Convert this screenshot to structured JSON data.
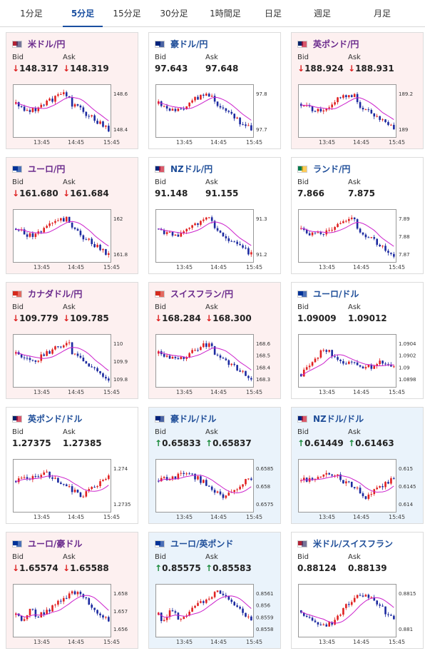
{
  "tabs": [
    {
      "label": "1分足",
      "active": false
    },
    {
      "label": "5分足",
      "active": true
    },
    {
      "label": "15分足",
      "active": false
    },
    {
      "label": "30分足",
      "active": false
    },
    {
      "label": "1時間足",
      "active": false
    },
    {
      "label": "日足",
      "active": false
    },
    {
      "label": "週足",
      "active": false
    },
    {
      "label": "月足",
      "active": false
    }
  ],
  "labels": {
    "bid": "Bid",
    "ask": "Ask"
  },
  "time_labels": [
    "13:45",
    "14:45",
    "15:45"
  ],
  "colors": {
    "down_bg": "#fdf0f0",
    "up_bg": "#eaf3fb",
    "candle_up": "#e02020",
    "candle_down": "#1c2aa0",
    "ma_line": "#cc22cc",
    "ma_line2": "#22aacc"
  },
  "cards": [
    {
      "name": "米ドル/円",
      "flag": "us",
      "trend": "down",
      "bid": "148.317",
      "ask": "148.319",
      "y_ticks": [
        "148.6",
        "148.4"
      ],
      "shape": "drop"
    },
    {
      "name": "豪ドル/円",
      "flag": "au",
      "trend": "flat",
      "bid": "97.643",
      "ask": "97.648",
      "y_ticks": [
        "97.8",
        "97.7"
      ],
      "shape": "drop"
    },
    {
      "name": "英ポンド/円",
      "flag": "gb",
      "trend": "down",
      "bid": "188.924",
      "ask": "188.931",
      "y_ticks": [
        "189.2",
        "189"
      ],
      "shape": "drop"
    },
    {
      "name": "ユーロ/円",
      "flag": "eu",
      "trend": "down",
      "bid": "161.680",
      "ask": "161.684",
      "y_ticks": [
        "162",
        "161.8"
      ],
      "shape": "drop"
    },
    {
      "name": "NZドル/円",
      "flag": "nz",
      "trend": "flat",
      "bid": "91.148",
      "ask": "91.155",
      "y_ticks": [
        "91.3",
        "91.2"
      ],
      "shape": "drop"
    },
    {
      "name": "ランド/円",
      "flag": "za",
      "trend": "flat",
      "bid": "7.866",
      "ask": "7.875",
      "y_ticks": [
        "7.89",
        "7.88",
        "7.87"
      ],
      "shape": "drop"
    },
    {
      "name": "カナダドル/円",
      "flag": "ca",
      "trend": "down",
      "bid": "109.779",
      "ask": "109.785",
      "y_ticks": [
        "110",
        "109.9",
        "109.8"
      ],
      "shape": "drop"
    },
    {
      "name": "スイスフラン/円",
      "flag": "ch",
      "trend": "down",
      "bid": "168.284",
      "ask": "168.300",
      "y_ticks": [
        "168.6",
        "168.5",
        "168.4",
        "168.3"
      ],
      "shape": "drop"
    },
    {
      "name": "ユーロ/ドル",
      "flag": "eu",
      "trend": "flat",
      "bid": "1.09009",
      "ask": "1.09012",
      "y_ticks": [
        "1.0904",
        "1.0902",
        "1.09",
        "1.0898"
      ],
      "shape": "rise"
    },
    {
      "name": "英ポンド/ドル",
      "flag": "gb",
      "trend": "flat",
      "bid": "1.27375",
      "ask": "1.27385",
      "y_ticks": [
        "1.274",
        "1.2735"
      ],
      "shape": "vee"
    },
    {
      "name": "豪ドル/ドル",
      "flag": "au",
      "trend": "up",
      "bid": "0.65833",
      "ask": "0.65837",
      "y_ticks": [
        "0.6585",
        "0.658",
        "0.6575"
      ],
      "shape": "vee"
    },
    {
      "name": "NZドル/ドル",
      "flag": "nz",
      "trend": "up",
      "bid": "0.61449",
      "ask": "0.61463",
      "y_ticks": [
        "0.615",
        "0.6145",
        "0.614"
      ],
      "shape": "vee"
    },
    {
      "name": "ユーロ/豪ドル",
      "flag": "eu",
      "trend": "down",
      "bid": "1.65574",
      "ask": "1.65588",
      "y_ticks": [
        "1.658",
        "1.657",
        "1.656"
      ],
      "shape": "hump"
    },
    {
      "name": "ユーロ/英ポンド",
      "flag": "eu",
      "trend": "up",
      "bid": "0.85575",
      "ask": "0.85583",
      "y_ticks": [
        "0.8561",
        "0.856",
        "0.8559",
        "0.8558"
      ],
      "shape": "hump"
    },
    {
      "name": "米ドル/スイスフラン",
      "flag": "us",
      "trend": "flat",
      "bid": "0.88124",
      "ask": "0.88139",
      "y_ticks": [
        "0.8815",
        "0.881"
      ],
      "shape": "wave"
    }
  ]
}
